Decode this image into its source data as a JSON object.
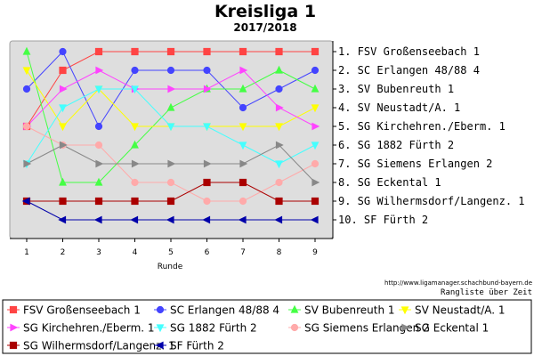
{
  "chart_data": {
    "type": "line",
    "title": "Kreisliga 1",
    "subtitle": "2017/2018",
    "xlabel": "Runde",
    "x": [
      1,
      2,
      3,
      4,
      5,
      6,
      7,
      8,
      9
    ],
    "ylim": [
      10,
      1
    ],
    "y_inverted": true,
    "grid": false,
    "legend_position": "bottom",
    "right_labels": [
      "1. FSV Großenseebach 1",
      "2. SC Erlangen 48/88 4",
      "3. SV Bubenreuth 1",
      "4. SV Neustadt/A. 1",
      "5. SG Kirchehren./Eberm. 1",
      "6. SG 1882 Fürth 2",
      "7. SG Siemens Erlangen 2",
      "8. SG Eckental 1",
      "9. SG Wilhermsdorf/Langenz. 1",
      "10. SF Fürth 2"
    ],
    "url": "http://www.ligamanager.schachbund-bayern.de",
    "subnote": "Rangliste über Zeit",
    "series": [
      {
        "name": "FSV Großenseebach 1",
        "color": "#ff4444",
        "marker": "square",
        "values": [
          5,
          2,
          1,
          1,
          1,
          1,
          1,
          1,
          1
        ]
      },
      {
        "name": "SC Erlangen 48/88 4",
        "color": "#4444ff",
        "marker": "circle",
        "values": [
          3,
          1,
          5,
          2,
          2,
          2,
          4,
          3,
          2
        ]
      },
      {
        "name": "SV Bubenreuth 1",
        "color": "#44ff44",
        "marker": "triangle-up",
        "values": [
          1,
          8,
          8,
          6,
          4,
          3,
          3,
          2,
          3
        ]
      },
      {
        "name": "SV Neustadt/A. 1",
        "color": "#ffff00",
        "marker": "triangle-down",
        "values": [
          2,
          5,
          3,
          5,
          5,
          5,
          5,
          5,
          4
        ]
      },
      {
        "name": "SG Kirchehren./Eberm. 1",
        "color": "#ff44ff",
        "marker": "triangle-right",
        "values": [
          5,
          3,
          2,
          3,
          3,
          3,
          2,
          4,
          5
        ]
      },
      {
        "name": "SG 1882 Fürth 2",
        "color": "#44ffff",
        "marker": "triangle-down",
        "values": [
          7,
          4,
          3,
          3,
          5,
          5,
          6,
          7,
          6
        ]
      },
      {
        "name": "SG Siemens Erlangen 2",
        "color": "#ffaaaa",
        "marker": "circle",
        "values": [
          5,
          6,
          6,
          8,
          8,
          9,
          9,
          8,
          7
        ]
      },
      {
        "name": "SG Eckental 1",
        "color": "#888888",
        "marker": "triangle-right",
        "values": [
          7,
          6,
          7,
          7,
          7,
          7,
          7,
          6,
          8
        ]
      },
      {
        "name": "SG Wilhermsdorf/Langenz. 1",
        "color": "#aa0000",
        "marker": "square",
        "values": [
          9,
          9,
          9,
          9,
          9,
          8,
          8,
          9,
          9
        ]
      },
      {
        "name": "SF Fürth 2",
        "color": "#0000aa",
        "marker": "triangle-left",
        "values": [
          9,
          10,
          10,
          10,
          10,
          10,
          10,
          10,
          10
        ]
      }
    ]
  }
}
